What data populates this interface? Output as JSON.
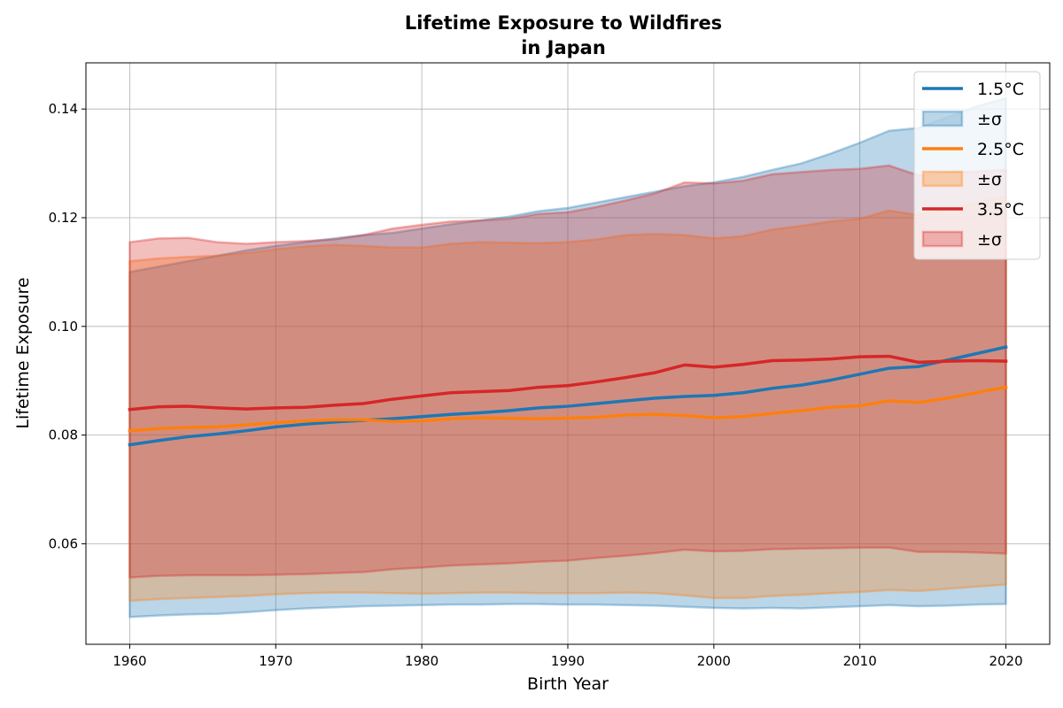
{
  "chart_data": {
    "type": "line",
    "title_line1": "Lifetime Exposure to Wildfires",
    "title_line2": "in Japan",
    "xlabel": "Birth Year",
    "ylabel": "Lifetime Exposure",
    "xlim": [
      1957,
      2023
    ],
    "ylim": [
      0.0415,
      0.1485
    ],
    "xticks": [
      1960,
      1970,
      1980,
      1990,
      2000,
      2010,
      2020
    ],
    "yticks": [
      0.06,
      0.08,
      0.1,
      0.12,
      0.14
    ],
    "grid": true,
    "legend_position": "top-right",
    "x": [
      1960,
      1962,
      1964,
      1966,
      1968,
      1970,
      1972,
      1974,
      1976,
      1978,
      1980,
      1982,
      1984,
      1986,
      1988,
      1990,
      1992,
      1994,
      1996,
      1998,
      2000,
      2002,
      2004,
      2006,
      2008,
      2010,
      2012,
      2014,
      2016,
      2018,
      2020
    ],
    "series": [
      {
        "name": "1.5°C",
        "band_name": "±σ",
        "color": "#1f77b4",
        "mean": [
          0.0782,
          0.079,
          0.0797,
          0.0802,
          0.0808,
          0.0815,
          0.082,
          0.0824,
          0.0827,
          0.083,
          0.0834,
          0.0838,
          0.0841,
          0.0845,
          0.085,
          0.0853,
          0.0858,
          0.0863,
          0.0868,
          0.0871,
          0.0873,
          0.0878,
          0.0886,
          0.0892,
          0.0901,
          0.0912,
          0.0923,
          0.0926,
          0.0938,
          0.095,
          0.0962
        ],
        "upper": [
          0.11,
          0.111,
          0.112,
          0.113,
          0.114,
          0.1148,
          0.1155,
          0.1162,
          0.1168,
          0.1172,
          0.118,
          0.1188,
          0.1195,
          0.1202,
          0.1212,
          0.1218,
          0.1228,
          0.1238,
          0.1248,
          0.1258,
          0.1265,
          0.1275,
          0.1288,
          0.13,
          0.1318,
          0.1338,
          0.136,
          0.1365,
          0.1385,
          0.1405,
          0.142
        ],
        "lower": [
          0.0465,
          0.0468,
          0.047,
          0.0471,
          0.0474,
          0.0478,
          0.0481,
          0.0483,
          0.0485,
          0.0486,
          0.0487,
          0.0488,
          0.0488,
          0.0489,
          0.0489,
          0.0488,
          0.0488,
          0.0487,
          0.0486,
          0.0484,
          0.0482,
          0.0481,
          0.0482,
          0.0481,
          0.0483,
          0.0485,
          0.0487,
          0.0485,
          0.0486,
          0.0488,
          0.0489
        ]
      },
      {
        "name": "2.5°C",
        "band_name": "±σ",
        "color": "#ff7f0e",
        "mean": [
          0.0808,
          0.0812,
          0.0814,
          0.0815,
          0.0819,
          0.0823,
          0.0826,
          0.0828,
          0.0828,
          0.0825,
          0.0826,
          0.083,
          0.0832,
          0.0831,
          0.083,
          0.0831,
          0.0833,
          0.0837,
          0.0838,
          0.0836,
          0.0832,
          0.0834,
          0.084,
          0.0845,
          0.0851,
          0.0854,
          0.0863,
          0.086,
          0.0868,
          0.0878,
          0.0888
        ],
        "upper": [
          0.112,
          0.1125,
          0.1128,
          0.113,
          0.1135,
          0.1142,
          0.1147,
          0.115,
          0.1148,
          0.1145,
          0.1145,
          0.1152,
          0.1155,
          0.1154,
          0.1153,
          0.1155,
          0.116,
          0.1168,
          0.117,
          0.1168,
          0.1162,
          0.1166,
          0.1178,
          0.1185,
          0.1193,
          0.1198,
          0.1213,
          0.1205,
          0.1215,
          0.1228,
          0.124
        ],
        "lower": [
          0.0495,
          0.0498,
          0.05,
          0.0502,
          0.0504,
          0.0507,
          0.0509,
          0.051,
          0.051,
          0.0509,
          0.0508,
          0.0509,
          0.051,
          0.051,
          0.0509,
          0.0509,
          0.0509,
          0.051,
          0.0509,
          0.0505,
          0.05,
          0.05,
          0.0504,
          0.0506,
          0.0509,
          0.0511,
          0.0515,
          0.0513,
          0.0517,
          0.0521,
          0.0525
        ]
      },
      {
        "name": "3.5°C",
        "band_name": "±σ",
        "color": "#d62728",
        "mean": [
          0.0847,
          0.0852,
          0.0853,
          0.085,
          0.0848,
          0.085,
          0.0851,
          0.0855,
          0.0858,
          0.0866,
          0.0872,
          0.0878,
          0.088,
          0.0882,
          0.0888,
          0.0891,
          0.0898,
          0.0906,
          0.0915,
          0.0929,
          0.0925,
          0.093,
          0.0937,
          0.0938,
          0.094,
          0.0944,
          0.0945,
          0.0934,
          0.0936,
          0.0937,
          0.0936
        ],
        "upper": [
          0.1155,
          0.1162,
          0.1163,
          0.1155,
          0.1152,
          0.1155,
          0.1157,
          0.116,
          0.1168,
          0.118,
          0.1187,
          0.1193,
          0.1195,
          0.1198,
          0.1207,
          0.121,
          0.122,
          0.1232,
          0.1245,
          0.1265,
          0.1263,
          0.1268,
          0.128,
          0.1284,
          0.1288,
          0.129,
          0.1296,
          0.1278,
          0.1283,
          0.1285,
          0.1288
        ],
        "lower": [
          0.0538,
          0.0541,
          0.0542,
          0.0542,
          0.0542,
          0.0543,
          0.0544,
          0.0546,
          0.0548,
          0.0553,
          0.0556,
          0.056,
          0.0562,
          0.0564,
          0.0567,
          0.0569,
          0.0574,
          0.0578,
          0.0583,
          0.0589,
          0.0586,
          0.0587,
          0.059,
          0.0591,
          0.0592,
          0.0593,
          0.0593,
          0.0585,
          0.0585,
          0.0584,
          0.0582
        ]
      }
    ]
  }
}
